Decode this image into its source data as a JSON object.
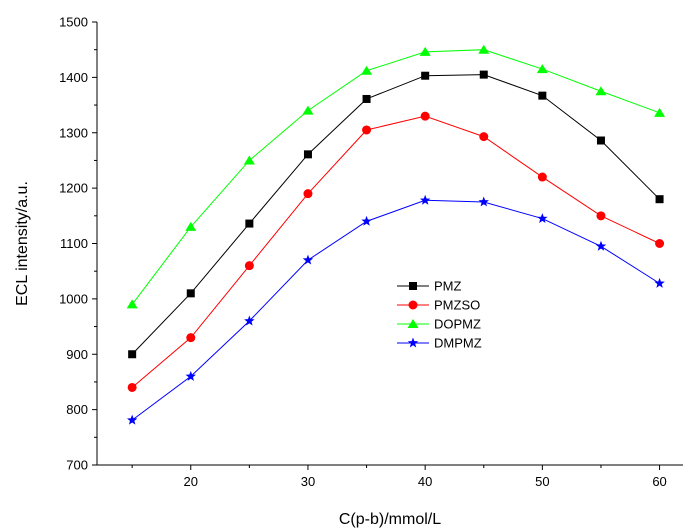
{
  "chart_data": {
    "type": "line",
    "title": "",
    "xlabel": "C(p-b)/mmol/L",
    "ylabel": "ECL intensity/a.u.",
    "xlim": [
      12,
      62
    ],
    "ylim": [
      700,
      1500
    ],
    "xticks": [
      20,
      30,
      40,
      50,
      60
    ],
    "yticks": [
      700,
      800,
      900,
      1000,
      1100,
      1200,
      1300,
      1400,
      1500
    ],
    "x": [
      15,
      20,
      25,
      30,
      35,
      40,
      45,
      50,
      55,
      60
    ],
    "grid": false,
    "legend_position": "center-right",
    "series": [
      {
        "name": "PMZ",
        "color": "#000000",
        "marker": "square",
        "values": [
          900,
          1010,
          1136,
          1261,
          1361,
          1403,
          1405,
          1367,
          1286,
          1180
        ]
      },
      {
        "name": "PMZSO",
        "color": "#ff0000",
        "marker": "circle",
        "values": [
          840,
          930,
          1060,
          1190,
          1305,
          1330,
          1293,
          1220,
          1150,
          1100
        ]
      },
      {
        "name": "DOPMZ",
        "color": "#00ff00",
        "marker": "triangle",
        "values": [
          990,
          1130,
          1250,
          1340,
          1412,
          1446,
          1450,
          1415,
          1375,
          1336
        ]
      },
      {
        "name": "DMPMZ",
        "color": "#0000ff",
        "marker": "star",
        "values": [
          781,
          860,
          960,
          1070,
          1140,
          1178,
          1175,
          1145,
          1095,
          1028
        ]
      }
    ]
  }
}
